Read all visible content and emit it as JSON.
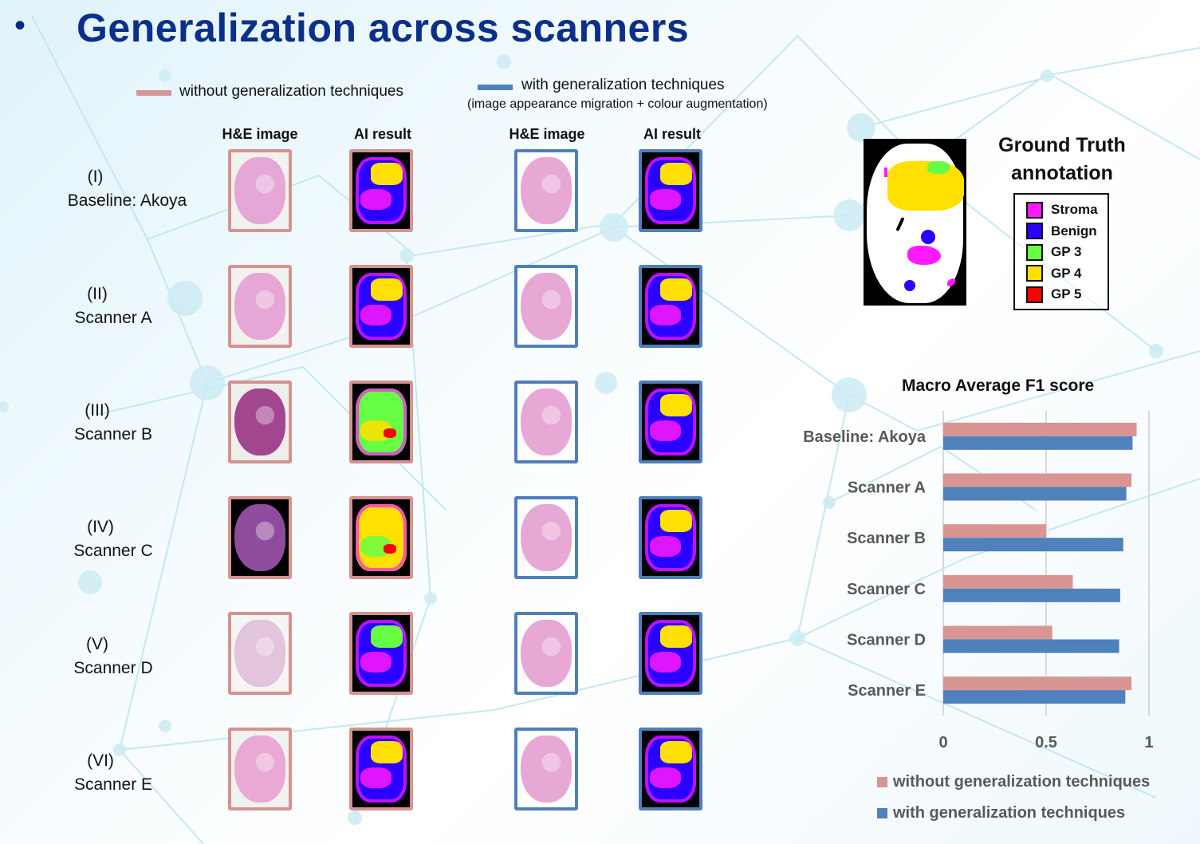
{
  "slide": {
    "bullet": "•",
    "title": "Generalization across scanners"
  },
  "legend": {
    "without_label": "without generalization techniques",
    "with_label": "with generalization techniques",
    "with_sublabel": "(image appearance migration + colour augmentation)",
    "without_color": "#d99594",
    "with_color": "#4f81bd"
  },
  "columns": {
    "without_he": "H&E image",
    "without_ai": "AI result",
    "with_he": "H&E image",
    "with_ai": "AI result"
  },
  "rows": [
    {
      "numeral": "(I)",
      "name": "Baseline: Akoya"
    },
    {
      "numeral": "(II)",
      "name": "Scanner A"
    },
    {
      "numeral": "(III)",
      "name": "Scanner B"
    },
    {
      "numeral": "(IV)",
      "name": "Scanner C"
    },
    {
      "numeral": "(V)",
      "name": "Scanner D"
    },
    {
      "numeral": "(VI)",
      "name": "Scanner E"
    }
  ],
  "ground_truth": {
    "title_line1": "Ground Truth",
    "title_line2": "annotation",
    "classes": [
      {
        "label": "Stroma",
        "color": "#ff19ff"
      },
      {
        "label": "Benign",
        "color": "#2a00ff"
      },
      {
        "label": "GP 3",
        "color": "#66ff44"
      },
      {
        "label": "GP 4",
        "color": "#ffe000"
      },
      {
        "label": "GP 5",
        "color": "#ff0000"
      }
    ]
  },
  "chart_data": {
    "type": "bar",
    "orientation": "horizontal",
    "title": "Macro Average F1 score",
    "categories": [
      "Baseline: Akoya",
      "Scanner A",
      "Scanner B",
      "Scanner C",
      "Scanner D",
      "Scanner E"
    ],
    "series": [
      {
        "name": "without generalization techniques",
        "color": "#d99594",
        "values": [
          0.94,
          0.915,
          0.5,
          0.63,
          0.53,
          0.915
        ]
      },
      {
        "name": "with generalization techniques",
        "color": "#4f81bd",
        "values": [
          0.92,
          0.89,
          0.875,
          0.86,
          0.855,
          0.885
        ]
      }
    ],
    "xlabel": "",
    "ylabel": "",
    "xlim": [
      0,
      1
    ],
    "xticks": [
      "0",
      "0.5",
      "1"
    ],
    "xtick_values": [
      0,
      0.5,
      1
    ],
    "grid": true,
    "legend": "bottom"
  }
}
